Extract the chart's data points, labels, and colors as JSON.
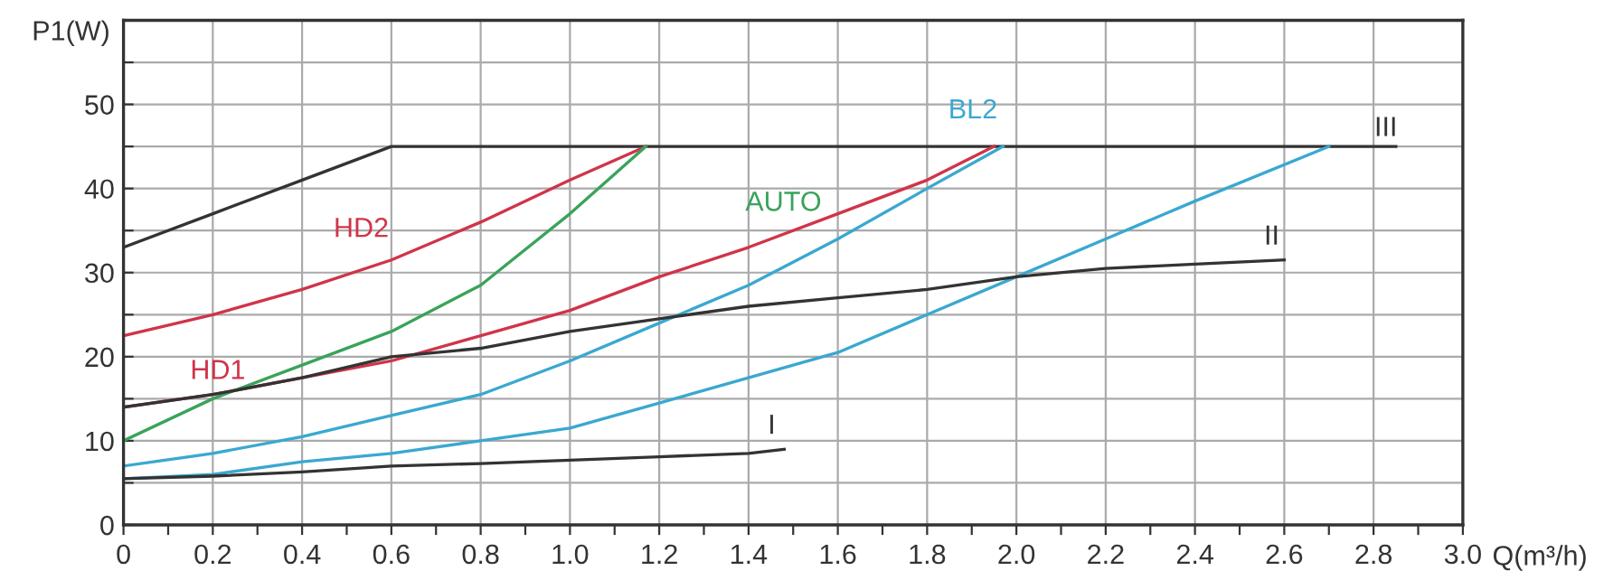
{
  "chart_data": {
    "type": "line",
    "xlabel": "Q(m³/h)",
    "ylabel": "P1(W)",
    "xlim": [
      0,
      3.0
    ],
    "ylim": [
      0,
      60
    ],
    "xticks": [
      0,
      {
        "value": 0.1,
        "label": null
      },
      0.2,
      {
        "value": 0.3,
        "label": null
      },
      0.4,
      {
        "value": 0.5,
        "label": null
      },
      0.6,
      {
        "value": 0.7,
        "label": null
      },
      0.8,
      {
        "value": 0.9,
        "label": null
      },
      {
        "value": 1.0,
        "label": "1.0"
      },
      {
        "value": 1.1,
        "label": null
      },
      1.2,
      {
        "value": 1.3,
        "label": null
      },
      1.4,
      {
        "value": 1.5,
        "label": null
      },
      1.6,
      {
        "value": 1.7,
        "label": null
      },
      1.8,
      {
        "value": 1.9,
        "label": null
      },
      {
        "value": 2.0,
        "label": "2.0"
      },
      {
        "value": 2.1,
        "label": null
      },
      2.2,
      {
        "value": 2.3,
        "label": null
      },
      2.4,
      {
        "value": 2.5,
        "label": null
      },
      2.6,
      {
        "value": 2.7,
        "label": null
      },
      2.8,
      {
        "value": 2.9,
        "label": null
      },
      {
        "value": 3.0,
        "label": "3.0"
      }
    ],
    "yticks": [
      0,
      {
        "value": 5,
        "label": null
      },
      10,
      {
        "value": 15,
        "label": null
      },
      20,
      {
        "value": 25,
        "label": null
      },
      30,
      {
        "value": 35,
        "label": null
      },
      40,
      {
        "value": 45,
        "label": null
      },
      50,
      {
        "value": 55,
        "label": null
      }
    ],
    "grid": true,
    "marker": "none",
    "line_style": "solid",
    "legend": false,
    "series": [
      {
        "name": "III",
        "color": "#333333",
        "x": [
          0,
          0.2,
          0.4,
          0.6,
          2.85
        ],
        "values": [
          33,
          37,
          41,
          45,
          45
        ]
      },
      {
        "name": "HD2",
        "color": "#d0344a",
        "x": [
          0,
          0.2,
          0.4,
          0.6,
          0.8,
          1.0,
          1.17
        ],
        "values": [
          22.5,
          25,
          28,
          31.5,
          36,
          41,
          45
        ]
      },
      {
        "name": "HD1",
        "color": "#d0344a",
        "x": [
          0,
          0.2,
          0.4,
          0.6,
          0.8,
          1.0,
          1.2,
          1.4,
          1.6,
          1.8,
          1.95
        ],
        "values": [
          14,
          15.5,
          17.5,
          19.5,
          22.5,
          25.5,
          29.5,
          33,
          37,
          41,
          45
        ]
      },
      {
        "name": "AUTO",
        "color": "#3aa35a",
        "x": [
          0,
          0.2,
          0.4,
          0.6,
          0.8,
          1.0,
          1.17
        ],
        "values": [
          10,
          15,
          19,
          23,
          28.5,
          37,
          45
        ]
      },
      {
        "name": "BL2",
        "color": "#3aa8d0",
        "x": [
          0,
          0.2,
          0.4,
          0.6,
          0.8,
          1.0,
          1.2,
          1.4,
          1.6,
          1.8,
          1.97
        ],
        "values": [
          7,
          8.5,
          10.5,
          13,
          15.5,
          19.5,
          24,
          28.5,
          34,
          40,
          45
        ]
      },
      {
        "color": "#3aa8d0",
        "x": [
          0,
          0.2,
          0.4,
          0.6,
          0.8,
          1.0,
          1.2,
          1.4,
          1.6,
          1.8,
          2.0,
          2.2,
          2.4,
          2.7
        ],
        "values": [
          5.5,
          6,
          7.5,
          8.5,
          10,
          11.5,
          14.5,
          17.5,
          20.5,
          25,
          29.5,
          34,
          38.5,
          45
        ]
      },
      {
        "name": "II",
        "color": "#333333",
        "x": [
          0,
          0.2,
          0.4,
          0.6,
          0.8,
          1.0,
          1.2,
          1.4,
          1.6,
          1.8,
          2.0,
          2.2,
          2.4,
          2.6
        ],
        "values": [
          14,
          15.5,
          17.5,
          20,
          21,
          23,
          24.5,
          26,
          27,
          28,
          29.5,
          30.5,
          31,
          31.5
        ]
      },
      {
        "name": "I",
        "color": "#333333",
        "x": [
          0,
          0.2,
          0.4,
          0.6,
          0.8,
          1.0,
          1.2,
          1.4,
          1.48
        ],
        "values": [
          5.5,
          5.8,
          6.3,
          7,
          7.3,
          7.7,
          8.1,
          8.5,
          9
        ]
      }
    ]
  }
}
